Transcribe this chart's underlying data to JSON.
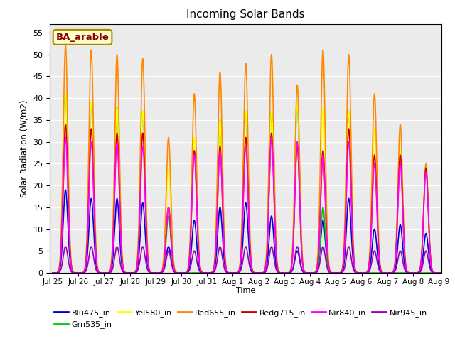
{
  "title": "Incoming Solar Bands",
  "xlabel": "Time",
  "ylabel": "Solar Radiation (W/m2)",
  "annotation": "BA_arable",
  "ylim": [
    0,
    57
  ],
  "yticks": [
    0,
    5,
    10,
    15,
    20,
    25,
    30,
    35,
    40,
    45,
    50,
    55
  ],
  "days": 16,
  "xtick_labels": [
    "Jul 25",
    "Jul 26",
    "Jul 27",
    "Jul 28",
    "Jul 29",
    "Jul 30",
    "Jul 31",
    "Aug 1",
    "Aug 2",
    "Aug 3",
    "Aug 4",
    "Aug 5",
    "Aug 6",
    "Aug 7",
    "Aug 8",
    "Aug 9"
  ],
  "series_order": [
    "Blu475_in",
    "Grn535_in",
    "Yel580_in",
    "Red655_in",
    "Redg715_in",
    "Nir840_in",
    "Nir945_in"
  ],
  "series": {
    "Blu475_in": {
      "color": "#0000dd",
      "lw": 1.2
    },
    "Grn535_in": {
      "color": "#00cc00",
      "lw": 1.2
    },
    "Yel580_in": {
      "color": "#ffff00",
      "lw": 1.2
    },
    "Red655_in": {
      "color": "#ff8800",
      "lw": 1.2
    },
    "Redg715_in": {
      "color": "#cc0000",
      "lw": 1.2
    },
    "Nir840_in": {
      "color": "#ff00ff",
      "lw": 1.2
    },
    "Nir945_in": {
      "color": "#9900bb",
      "lw": 1.2
    }
  },
  "day_peaks": {
    "Blu475_in": [
      19,
      17,
      17,
      16,
      6,
      12,
      15,
      16,
      13,
      5,
      12,
      17,
      10,
      11,
      9,
      0
    ],
    "Grn535_in": [
      41,
      39,
      38,
      37,
      13,
      0,
      35,
      37,
      37,
      39,
      15,
      37,
      0,
      0,
      0,
      0
    ],
    "Yel580_in": [
      41,
      39,
      38,
      37,
      24,
      31,
      35,
      37,
      37,
      39,
      38,
      37,
      33,
      28,
      24,
      0
    ],
    "Red655_in": [
      52,
      51,
      50,
      49,
      31,
      41,
      46,
      48,
      50,
      43,
      51,
      50,
      41,
      34,
      25,
      0
    ],
    "Redg715_in": [
      34,
      33,
      32,
      32,
      15,
      28,
      29,
      31,
      32,
      29,
      28,
      33,
      27,
      27,
      24,
      0
    ],
    "Nir840_in": [
      31,
      30,
      30,
      29,
      15,
      27,
      28,
      29,
      31,
      30,
      27,
      30,
      25,
      25,
      23,
      0
    ],
    "Nir945_in": [
      6,
      6,
      6,
      6,
      5,
      5,
      6,
      6,
      6,
      6,
      6,
      6,
      5,
      5,
      5,
      0
    ]
  },
  "background_color": "#ebebeb",
  "legend_fontsize": 8,
  "title_fontsize": 11
}
